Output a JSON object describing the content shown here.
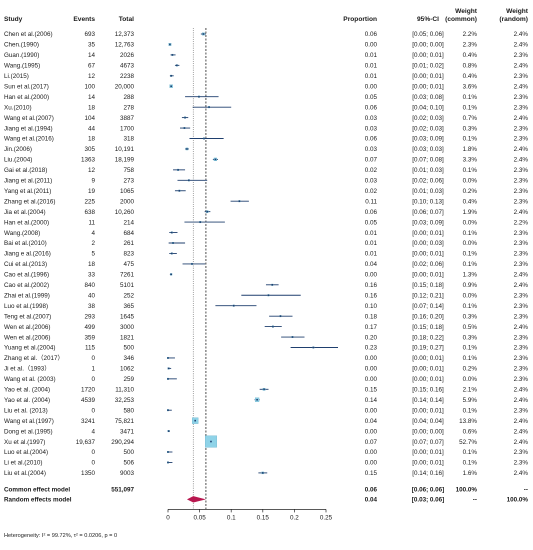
{
  "chart_data": {
    "type": "forest",
    "headers": {
      "study": "Study",
      "events": "Events",
      "total": "Total",
      "proportion": "Proportion",
      "ci": "95%-CI",
      "weight_common": "Weight\n(common)",
      "weight_random": "Weight\n(random)"
    },
    "x_ticks": [
      "0",
      "0.05",
      "0.1",
      "0.15",
      "0.2",
      "0.25"
    ],
    "xlim": [
      0,
      0.25
    ],
    "reference_lines": {
      "common_effect": 0.06,
      "random_effect": 0.04
    },
    "studies": [
      {
        "study": "Chen et al.(2006)",
        "events": "693",
        "total": "12,373",
        "proportion": "0.06",
        "ci": "[0.05; 0.06]",
        "w_common": "2.2%",
        "w_random": "2.4%",
        "p": 0.056,
        "lo": 0.052,
        "hi": 0.06
      },
      {
        "study": "Chen.(1990)",
        "events": "35",
        "total": "12,763",
        "proportion": "0.00",
        "ci": "[0.00; 0.00]",
        "w_common": "2.3%",
        "w_random": "2.4%",
        "p": 0.003,
        "lo": 0.002,
        "hi": 0.004
      },
      {
        "study": "Guan.(1990)",
        "events": "14",
        "total": "2026",
        "proportion": "0.01",
        "ci": "[0.00; 0.01]",
        "w_common": "0.4%",
        "w_random": "2.3%",
        "p": 0.007,
        "lo": 0.004,
        "hi": 0.012
      },
      {
        "study": "Wang.(1995)",
        "events": "67",
        "total": "4673",
        "proportion": "0.01",
        "ci": "[0.01; 0.02]",
        "w_common": "0.8%",
        "w_random": "2.4%",
        "p": 0.014,
        "lo": 0.011,
        "hi": 0.018
      },
      {
        "study": "Li.(2015)",
        "events": "12",
        "total": "2238",
        "proportion": "0.01",
        "ci": "[0.00; 0.01]",
        "w_common": "0.4%",
        "w_random": "2.3%",
        "p": 0.005,
        "lo": 0.003,
        "hi": 0.009
      },
      {
        "study": "Sun et al.(2017)",
        "events": "100",
        "total": "20,000",
        "proportion": "0.00",
        "ci": "[0.00; 0.01]",
        "w_common": "3.6%",
        "w_random": "2.4%",
        "p": 0.005,
        "lo": 0.004,
        "hi": 0.006
      },
      {
        "study": "Han et al.(2000)",
        "events": "14",
        "total": "288",
        "proportion": "0.05",
        "ci": "[0.03; 0.08]",
        "w_common": "0.1%",
        "w_random": "2.3%",
        "p": 0.049,
        "lo": 0.027,
        "hi": 0.08
      },
      {
        "study": "Xu.(2010)",
        "events": "18",
        "total": "278",
        "proportion": "0.06",
        "ci": "[0.04; 0.10]",
        "w_common": "0.1%",
        "w_random": "2.3%",
        "p": 0.065,
        "lo": 0.039,
        "hi": 0.1
      },
      {
        "study": "Wang et al.(2007)",
        "events": "104",
        "total": "3887",
        "proportion": "0.03",
        "ci": "[0.02; 0.03]",
        "w_common": "0.7%",
        "w_random": "2.4%",
        "p": 0.027,
        "lo": 0.022,
        "hi": 0.032
      },
      {
        "study": "Jiang et al.(1994)",
        "events": "44",
        "total": "1700",
        "proportion": "0.03",
        "ci": "[0.02; 0.03]",
        "w_common": "0.3%",
        "w_random": "2.3%",
        "p": 0.026,
        "lo": 0.019,
        "hi": 0.035
      },
      {
        "study": "Wang et al.(2016)",
        "events": "18",
        "total": "318",
        "proportion": "0.06",
        "ci": "[0.03; 0.09]",
        "w_common": "0.1%",
        "w_random": "2.3%",
        "p": 0.057,
        "lo": 0.034,
        "hi": 0.088
      },
      {
        "study": "Jin.(2006)",
        "events": "305",
        "total": "10,191",
        "proportion": "0.03",
        "ci": "[0.03; 0.03]",
        "w_common": "1.8%",
        "w_random": "2.4%",
        "p": 0.03,
        "lo": 0.027,
        "hi": 0.033
      },
      {
        "study": "Liu.(2004)",
        "events": "1363",
        "total": "18,199",
        "proportion": "0.07",
        "ci": "[0.07; 0.08]",
        "w_common": "3.3%",
        "w_random": "2.4%",
        "p": 0.075,
        "lo": 0.071,
        "hi": 0.079
      },
      {
        "study": "Gai et al.(2018)",
        "events": "12",
        "total": "758",
        "proportion": "0.02",
        "ci": "[0.01; 0.03]",
        "w_common": "0.1%",
        "w_random": "2.3%",
        "p": 0.016,
        "lo": 0.008,
        "hi": 0.027
      },
      {
        "study": "Jiang et al.(2011)",
        "events": "9",
        "total": "273",
        "proportion": "0.03",
        "ci": "[0.02; 0.06]",
        "w_common": "0.0%",
        "w_random": "2.3%",
        "p": 0.033,
        "lo": 0.015,
        "hi": 0.062
      },
      {
        "study": "Yang et al.(2011)",
        "events": "19",
        "total": "1065",
        "proportion": "0.02",
        "ci": "[0.01; 0.03]",
        "w_common": "0.2%",
        "w_random": "2.3%",
        "p": 0.018,
        "lo": 0.011,
        "hi": 0.028
      },
      {
        "study": "Zhang et al.(2016)",
        "events": "225",
        "total": "2000",
        "proportion": "0.11",
        "ci": "[0.10; 0.13]",
        "w_common": "0.4%",
        "w_random": "2.3%",
        "p": 0.113,
        "lo": 0.099,
        "hi": 0.128
      },
      {
        "study": "Jia et al.(2004)",
        "events": "638",
        "total": "10,260",
        "proportion": "0.06",
        "ci": "[0.06; 0.07]",
        "w_common": "1.9%",
        "w_random": "2.4%",
        "p": 0.062,
        "lo": 0.058,
        "hi": 0.067
      },
      {
        "study": "Han et al.(2000)",
        "events": "11",
        "total": "214",
        "proportion": "0.05",
        "ci": "[0.03; 0.09]",
        "w_common": "0.0%",
        "w_random": "2.2%",
        "p": 0.051,
        "lo": 0.026,
        "hi": 0.09
      },
      {
        "study": "Wang.(2008)",
        "events": "4",
        "total": "684",
        "proportion": "0.01",
        "ci": "[0.00; 0.01]",
        "w_common": "0.1%",
        "w_random": "2.3%",
        "p": 0.006,
        "lo": 0.002,
        "hi": 0.015
      },
      {
        "study": "Bai et al.(2010)",
        "events": "2",
        "total": "261",
        "proportion": "0.01",
        "ci": "[0.00; 0.03]",
        "w_common": "0.0%",
        "w_random": "2.3%",
        "p": 0.008,
        "lo": 0.001,
        "hi": 0.027
      },
      {
        "study": "Jiang e al.(2016)",
        "events": "5",
        "total": "823",
        "proportion": "0.01",
        "ci": "[0.00; 0.01]",
        "w_common": "0.1%",
        "w_random": "2.3%",
        "p": 0.006,
        "lo": 0.002,
        "hi": 0.014
      },
      {
        "study": "Cui et al.(2013)",
        "events": "18",
        "total": "475",
        "proportion": "0.04",
        "ci": "[0.02; 0.06]",
        "w_common": "0.1%",
        "w_random": "2.3%",
        "p": 0.038,
        "lo": 0.023,
        "hi": 0.059
      },
      {
        "study": "Cao et al.(1996)",
        "events": "33",
        "total": "7261",
        "proportion": "0.00",
        "ci": "[0.00; 0.01]",
        "w_common": "1.3%",
        "w_random": "2.4%",
        "p": 0.005,
        "lo": 0.003,
        "hi": 0.006
      },
      {
        "study": "Cao et al.(2002)",
        "events": "840",
        "total": "5101",
        "proportion": "0.16",
        "ci": "[0.15; 0.18]",
        "w_common": "0.9%",
        "w_random": "2.4%",
        "p": 0.165,
        "lo": 0.155,
        "hi": 0.175
      },
      {
        "study": "Zhai et al.(1999)",
        "events": "40",
        "total": "252",
        "proportion": "0.16",
        "ci": "[0.12; 0.21]",
        "w_common": "0.0%",
        "w_random": "2.3%",
        "p": 0.159,
        "lo": 0.116,
        "hi": 0.21
      },
      {
        "study": "Luo et al.(1998)",
        "events": "38",
        "total": "365",
        "proportion": "0.10",
        "ci": "[0.07; 0.14]",
        "w_common": "0.1%",
        "w_random": "2.3%",
        "p": 0.104,
        "lo": 0.075,
        "hi": 0.14
      },
      {
        "study": "Teng et al.(2007)",
        "events": "293",
        "total": "1645",
        "proportion": "0.18",
        "ci": "[0.16; 0.20]",
        "w_common": "0.3%",
        "w_random": "2.3%",
        "p": 0.178,
        "lo": 0.16,
        "hi": 0.197
      },
      {
        "study": "Wen et al.(2006)",
        "events": "499",
        "total": "3000",
        "proportion": "0.17",
        "ci": "[0.15; 0.18]",
        "w_common": "0.5%",
        "w_random": "2.4%",
        "p": 0.166,
        "lo": 0.153,
        "hi": 0.18
      },
      {
        "study": "Wen et al.(2006)",
        "events": "359",
        "total": "1821",
        "proportion": "0.20",
        "ci": "[0.18; 0.22]",
        "w_common": "0.3%",
        "w_random": "2.3%",
        "p": 0.197,
        "lo": 0.179,
        "hi": 0.216
      },
      {
        "study": "Yuang et al.(2004)",
        "events": "115",
        "total": "500",
        "proportion": "0.23",
        "ci": "[0.19; 0.27]",
        "w_common": "0.1%",
        "w_random": "2.3%",
        "p": 0.23,
        "lo": 0.194,
        "hi": 0.269
      },
      {
        "study": "Zhang et al.（2017）",
        "events": "0",
        "total": "346",
        "proportion": "0.00",
        "ci": "[0.00; 0.01]",
        "w_common": "0.1%",
        "w_random": "2.3%",
        "p": 0.0,
        "lo": 0.0,
        "hi": 0.011
      },
      {
        "study": "Ji et al.（1993）",
        "events": "1",
        "total": "1062",
        "proportion": "0.00",
        "ci": "[0.00; 0.01]",
        "w_common": "0.2%",
        "w_random": "2.3%",
        "p": 0.001,
        "lo": 0.0,
        "hi": 0.005
      },
      {
        "study": "Wang et al. (2003)",
        "events": "0",
        "total": "259",
        "proportion": "0.00",
        "ci": "[0.00; 0.01]",
        "w_common": "0.0%",
        "w_random": "2.3%",
        "p": 0.0,
        "lo": 0.0,
        "hi": 0.014
      },
      {
        "study": "Yao et al. (2004)",
        "events": "1720",
        "total": "11,310",
        "proportion": "0.15",
        "ci": "[0.15; 0.16]",
        "w_common": "2.1%",
        "w_random": "2.4%",
        "p": 0.152,
        "lo": 0.145,
        "hi": 0.159
      },
      {
        "study": "Yao et al. (2004)",
        "events": "4539",
        "total": "32,253",
        "proportion": "0.14",
        "ci": "[0.14; 0.14]",
        "w_common": "5.9%",
        "w_random": "2.4%",
        "p": 0.141,
        "lo": 0.137,
        "hi": 0.145
      },
      {
        "study": "Liu et al. (2013)",
        "events": "0",
        "total": "580",
        "proportion": "0.00",
        "ci": "[0.00; 0.01]",
        "w_common": "0.1%",
        "w_random": "2.3%",
        "p": 0.0,
        "lo": 0.0,
        "hi": 0.006
      },
      {
        "study": "Wang et al.(1997)",
        "events": "3241",
        "total": "75,821",
        "proportion": "0.04",
        "ci": "[0.04; 0.04]",
        "w_common": "13.8%",
        "w_random": "2.4%",
        "p": 0.043,
        "lo": 0.041,
        "hi": 0.044
      },
      {
        "study": "Dong et al.(1995)",
        "events": "4",
        "total": "3471",
        "proportion": "0.00",
        "ci": "[0.00; 0.00]",
        "w_common": "0.6%",
        "w_random": "2.4%",
        "p": 0.001,
        "lo": 0.0,
        "hi": 0.003
      },
      {
        "study": "Xu et al.(1997)",
        "events": "19,637",
        "total": "290,294",
        "proportion": "0.07",
        "ci": "[0.07; 0.07]",
        "w_common": "52.7%",
        "w_random": "2.4%",
        "p": 0.068,
        "lo": 0.067,
        "hi": 0.069
      },
      {
        "study": "Luo et al.(2004)",
        "events": "0",
        "total": "500",
        "proportion": "0.00",
        "ci": "[0.00; 0.01]",
        "w_common": "0.1%",
        "w_random": "2.3%",
        "p": 0.0,
        "lo": 0.0,
        "hi": 0.007
      },
      {
        "study": "Li et al.(2010)",
        "events": "0",
        "total": "506",
        "proportion": "0.00",
        "ci": "[0.00; 0.01]",
        "w_common": "0.1%",
        "w_random": "2.3%",
        "p": 0.0,
        "lo": 0.0,
        "hi": 0.007
      },
      {
        "study": "Liu et al.(2004)",
        "events": "1350",
        "total": "9003",
        "proportion": "0.15",
        "ci": "[0.14; 0.16]",
        "w_common": "1.6%",
        "w_random": "2.4%",
        "p": 0.15,
        "lo": 0.143,
        "hi": 0.157
      }
    ],
    "pooled": [
      {
        "label": "Common effect model",
        "total": "551,097",
        "proportion": "0.06",
        "ci": "[0.06; 0.06]",
        "w_common": "100.0%",
        "w_random": "--",
        "p": 0.06,
        "lo": 0.06,
        "hi": 0.06
      },
      {
        "label": "Random effects model",
        "total": "",
        "proportion": "0.04",
        "ci": "[0.03; 0.06]",
        "w_common": "--",
        "w_random": "100.0%",
        "p": 0.04,
        "lo": 0.03,
        "hi": 0.06
      }
    ],
    "heterogeneity": "Heterogeneity: I² = 99.72%, τ² = 0.0206, p = 0",
    "colors": {
      "square": "#8fd3e8",
      "ci_line": "#1f3f6e",
      "diamond": "#b8174f",
      "text": "#1a1a1a"
    }
  }
}
